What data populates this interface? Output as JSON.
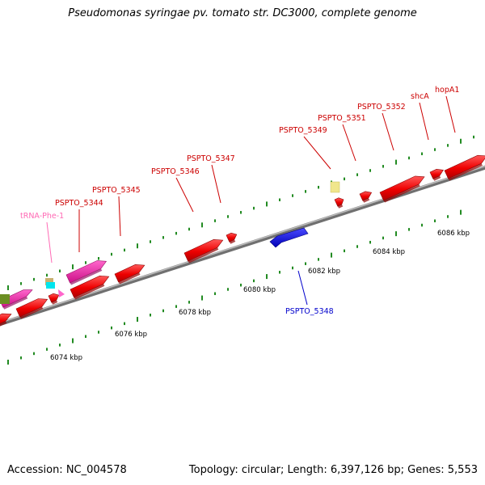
{
  "title": "Pseudomonas syringae pv. tomato str. DC3000, complete genome",
  "footer": {
    "accession": "Accession: NC_004578",
    "summary": "Topology: circular; Length: 6,397,126 bp; Genes: 5,553"
  },
  "colors": {
    "backbone": "#8c8c8c",
    "forward_ticks": "#228b22",
    "reverse_ticks": "#228b22",
    "cds": "#ff0000",
    "rna": "#ff1493",
    "reverse_cds": "#0000ff",
    "label_forward": "#cc0000",
    "label_reverse": "#0000cc",
    "label_trna": "#ff69b4"
  },
  "kbp_ticks": [
    "6074 kbp",
    "6076 kbp",
    "6078 kbp",
    "6080 kbp",
    "6082 kbp",
    "6084 kbp",
    "6086 kbp"
  ],
  "genes": [
    {
      "label": "PSPTO_5344",
      "strand": "+",
      "kind": "CDS"
    },
    {
      "label": "PSPTO_5345",
      "strand": "+",
      "kind": "CDS"
    },
    {
      "label": "PSPTO_5346",
      "strand": "+",
      "kind": "CDS"
    },
    {
      "label": "PSPTO_5347",
      "strand": "+",
      "kind": "CDS"
    },
    {
      "label": "PSPTO_5348",
      "strand": "-",
      "kind": "CDS"
    },
    {
      "label": "PSPTO_5349",
      "strand": "+",
      "kind": "CDS"
    },
    {
      "label": "PSPTO_5351",
      "strand": "+",
      "kind": "CDS"
    },
    {
      "label": "PSPTO_5352",
      "strand": "+",
      "kind": "CDS"
    },
    {
      "label": "shcA",
      "strand": "+",
      "kind": "CDS"
    },
    {
      "label": "hopA1",
      "strand": "+",
      "kind": "CDS"
    },
    {
      "label": "tRNA-Phe-1",
      "strand": "+",
      "kind": "tRNA"
    }
  ]
}
